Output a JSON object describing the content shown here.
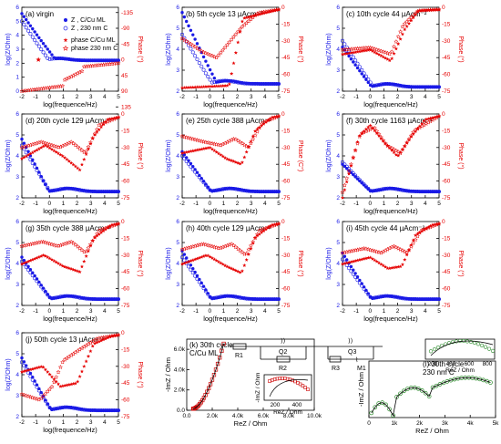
{
  "colors": {
    "modulus": "#1a1ae6",
    "phase": "#e60000",
    "nyquist": "#cc0000",
    "nyquist_fit": "#2a8a2a"
  },
  "legend": {
    "z_ml": "Z , C/Cu ML",
    "z_230": "Z , 230 nm C",
    "phase_ml": "phase C/Cu ML",
    "phase_230": "phase 230 nm C"
  },
  "axes_text": {
    "xlabel": "log(frequence/Hz)",
    "ylabel_left": "log(Z/Ohm)",
    "ylabel_right": "Phase (°)",
    "ylabel_right_alt": "Phase (C°)"
  },
  "chart_data": [
    {
      "id": "a",
      "type": "scatter",
      "title": "(a) virgin",
      "x_range": [
        -2,
        5
      ],
      "ylim_left": [
        0,
        6
      ],
      "ylim_right": [
        90,
        -150
      ]
    },
    {
      "id": "b",
      "type": "scatter",
      "title": "(b) 5th cycle 13 µAcm⁻²",
      "x_range": [
        -2,
        5
      ],
      "ylim_left": [
        2,
        6
      ],
      "ylim_right": [
        -75,
        0
      ]
    },
    {
      "id": "c",
      "type": "scatter",
      "title": "(c) 10th cycle 44 µAcm⁻²",
      "x_range": [
        -2,
        5
      ],
      "ylim_left": [
        2,
        6
      ],
      "ylim_right": [
        -75,
        0
      ]
    },
    {
      "id": "d",
      "type": "scatter",
      "title": "(d) 20th cycle 129 µAcm⁻²",
      "x_range": [
        -2,
        5
      ],
      "ylim_left": [
        2,
        6
      ],
      "ylim_right": [
        -75,
        0
      ]
    },
    {
      "id": "e",
      "type": "scatter",
      "title": "(e) 25th cycle 388 µAcm⁻²",
      "x_range": [
        -2,
        5
      ],
      "ylim_left": [
        2,
        6
      ],
      "ylim_right": [
        -75,
        0
      ]
    },
    {
      "id": "f",
      "type": "scatter",
      "title": "(f) 30th cycle 1163 µAcm⁻²",
      "x_range": [
        -2,
        5
      ],
      "ylim_left": [
        2,
        6
      ],
      "ylim_right": [
        -75,
        0
      ]
    },
    {
      "id": "g",
      "type": "scatter",
      "title": "(g) 35th cycle 388 µAcm⁻²",
      "x_range": [
        -2,
        5
      ],
      "ylim_left": [
        2,
        6
      ],
      "ylim_right": [
        -75,
        0
      ]
    },
    {
      "id": "h",
      "type": "scatter",
      "title": "(h) 40th cycle 129 µAcm⁻²",
      "x_range": [
        -2,
        5
      ],
      "ylim_left": [
        2,
        6
      ],
      "ylim_right": [
        -75,
        0
      ]
    },
    {
      "id": "i",
      "type": "scatter",
      "title": "(i) 45th cycle 44 µAcm⁻²",
      "x_range": [
        -2,
        5
      ],
      "ylim_left": [
        2,
        6
      ],
      "ylim_right": [
        -75,
        0
      ]
    },
    {
      "id": "j",
      "type": "scatter",
      "title": "(j) 50th cycle 13 µAcm⁻²",
      "x_range": [
        -2,
        5
      ],
      "ylim_left": [
        2,
        6
      ],
      "ylim_right": [
        -75,
        0
      ]
    },
    {
      "id": "k",
      "type": "scatter",
      "title": "(k) 30th cycle",
      "subtitle": "C/Cu ML",
      "xlabel": "ReZ / Ohm",
      "ylabel": "-ImZ / Ohm",
      "x_ticks": [
        "0.0",
        "2.0k",
        "4.0k",
        "6.0k",
        "8.0k",
        "10.0k"
      ],
      "y_ticks": [
        "0.0",
        "2.0k",
        "4.0k",
        "6.0k"
      ],
      "inset_x_ticks": [
        "200",
        "400"
      ],
      "inset_ylabel": "-ImZ / Ohm",
      "inset_xlabel": "ReZ / Ohm"
    },
    {
      "id": "l",
      "type": "scatter",
      "title": "(l) 30th cycle",
      "subtitle": "230 nm C",
      "xlabel": "ReZ / Ohm",
      "ylabel": "-ImZ / Ohm",
      "x_ticks": [
        "0",
        "1k",
        "2k",
        "3k",
        "4k",
        "5k"
      ],
      "inset_x_ticks": [
        "200",
        "400",
        "600",
        "800"
      ],
      "inset_xlabel": "ReZ / Ohm"
    }
  ],
  "circuit": {
    "r1": "R1",
    "q2": "Q2",
    "r2": "R2",
    "q3": "Q3",
    "r3": "R3",
    "m1": "M1"
  }
}
